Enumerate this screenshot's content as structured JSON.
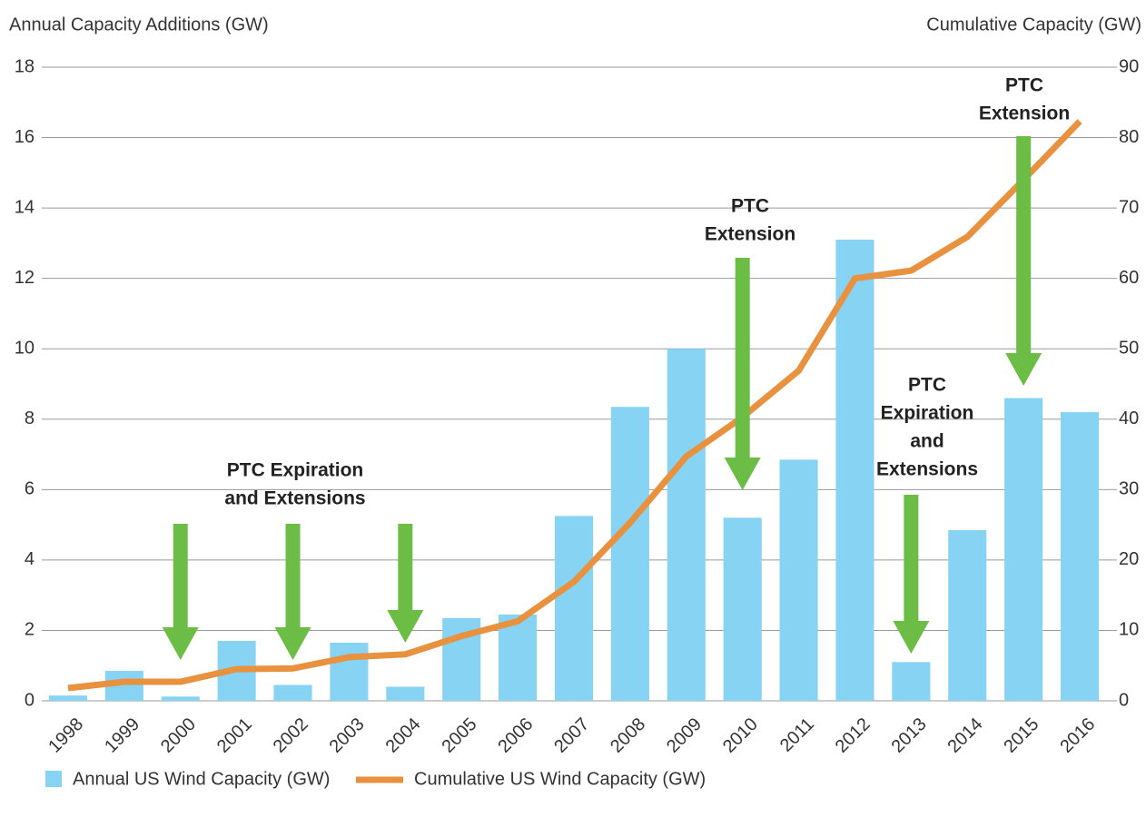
{
  "chart_data": {
    "type": "bar",
    "y_label": "Annual Capacity Additions (GW)",
    "y2_label": "Cumulative Capacity (GW)",
    "categories": [
      "1998",
      "1999",
      "2000",
      "2001",
      "2002",
      "2003",
      "2004",
      "2005",
      "2006",
      "2007",
      "2008",
      "2009",
      "2010",
      "2011",
      "2012",
      "2013",
      "2014",
      "2015",
      "2016"
    ],
    "series": [
      {
        "name": "Annual US Wind Capacity (GW)",
        "type": "bar",
        "color": "#87d3f3",
        "values": [
          0.15,
          0.85,
          0.12,
          1.7,
          0.45,
          1.65,
          0.4,
          2.35,
          2.45,
          5.25,
          8.35,
          10.0,
          5.2,
          6.85,
          13.1,
          1.1,
          4.85,
          8.6,
          8.2
        ]
      },
      {
        "name": "Cumulative US Wind Capacity (GW)",
        "type": "line",
        "axis": "y2",
        "color": "#e8913f",
        "values": [
          1.8,
          2.7,
          2.7,
          4.5,
          4.6,
          6.2,
          6.6,
          9.2,
          11.3,
          16.9,
          25.3,
          34.7,
          40.3,
          46.9,
          60.0,
          61.1,
          65.9,
          74.0,
          82.3
        ]
      }
    ],
    "ylim": [
      0,
      18
    ],
    "yticks": [
      0,
      2,
      4,
      6,
      8,
      10,
      12,
      14,
      16,
      18
    ],
    "y2lim": [
      0,
      90
    ],
    "y2ticks": [
      0,
      10,
      20,
      30,
      40,
      50,
      60,
      70,
      80,
      90
    ],
    "grid": true,
    "legend": "bottom-left",
    "arrow_color": "#6cbd45",
    "annotations": [
      {
        "lines": [
          "PTC Expiration",
          "and Extensions"
        ]
      },
      {
        "lines": [
          "PTC",
          "Extension"
        ]
      },
      {
        "lines": [
          "PTC",
          "Expiration",
          "and",
          "Extensions"
        ]
      },
      {
        "lines": [
          "PTC",
          "Extension"
        ]
      }
    ]
  }
}
